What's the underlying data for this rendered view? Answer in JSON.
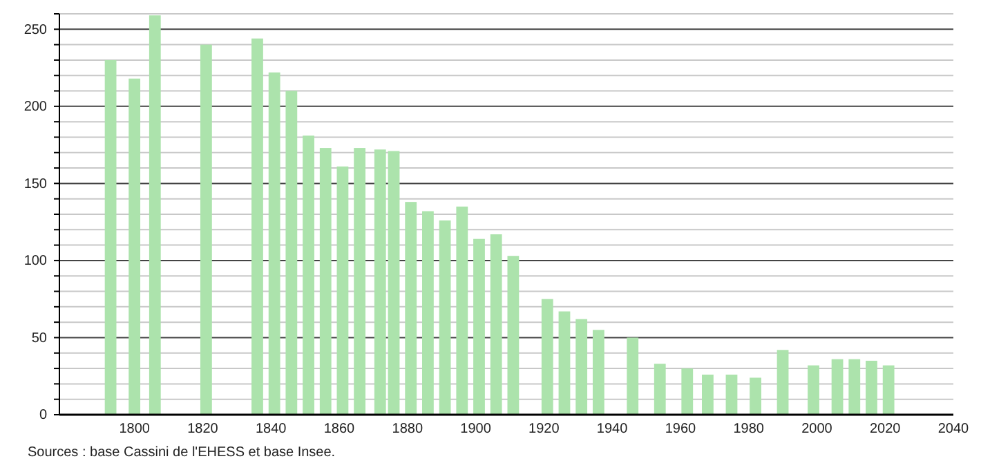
{
  "chart_data": {
    "type": "bar",
    "x": [
      1793,
      1800,
      1806,
      1821,
      1836,
      1841,
      1846,
      1851,
      1856,
      1861,
      1866,
      1872,
      1876,
      1881,
      1886,
      1891,
      1896,
      1901,
      1906,
      1911,
      1921,
      1926,
      1931,
      1936,
      1946,
      1954,
      1962,
      1968,
      1975,
      1982,
      1990,
      1999,
      2006,
      2011,
      2016,
      2021
    ],
    "values": [
      230,
      218,
      259,
      240,
      244,
      222,
      210,
      181,
      173,
      161,
      173,
      172,
      171,
      138,
      132,
      126,
      135,
      114,
      117,
      103,
      75,
      67,
      62,
      55,
      50,
      33,
      30,
      26,
      26,
      24,
      42,
      32,
      36,
      36,
      35,
      32
    ],
    "color": "#ace3ac",
    "xlim": [
      1778,
      2040
    ],
    "xticks": [
      1800,
      1820,
      1840,
      1860,
      1880,
      1900,
      1920,
      1940,
      1960,
      1980,
      2000,
      2020,
      2040
    ],
    "ylim": [
      0,
      260
    ],
    "yticks": [
      0,
      {
        "value": 10,
        "label": null
      },
      {
        "value": 20,
        "label": null
      },
      {
        "value": 30,
        "label": null
      },
      {
        "value": 40,
        "label": null
      },
      50,
      {
        "value": 60,
        "label": null
      },
      {
        "value": 70,
        "label": null
      },
      {
        "value": 80,
        "label": null
      },
      {
        "value": 90,
        "label": null
      },
      100,
      {
        "value": 110,
        "label": null
      },
      {
        "value": 120,
        "label": null
      },
      {
        "value": 130,
        "label": null
      },
      {
        "value": 140,
        "label": null
      },
      150,
      {
        "value": 160,
        "label": null
      },
      {
        "value": 170,
        "label": null
      },
      {
        "value": 180,
        "label": null
      },
      {
        "value": 190,
        "label": null
      },
      200,
      {
        "value": 210,
        "label": null
      },
      {
        "value": 220,
        "label": null
      },
      {
        "value": 230,
        "label": null
      },
      {
        "value": 240,
        "label": null
      },
      250,
      {
        "value": 260,
        "label": null
      }
    ],
    "grid": "y",
    "annotations": [
      "Sources : base Cassini de l'EHESS et base Insee."
    ]
  }
}
